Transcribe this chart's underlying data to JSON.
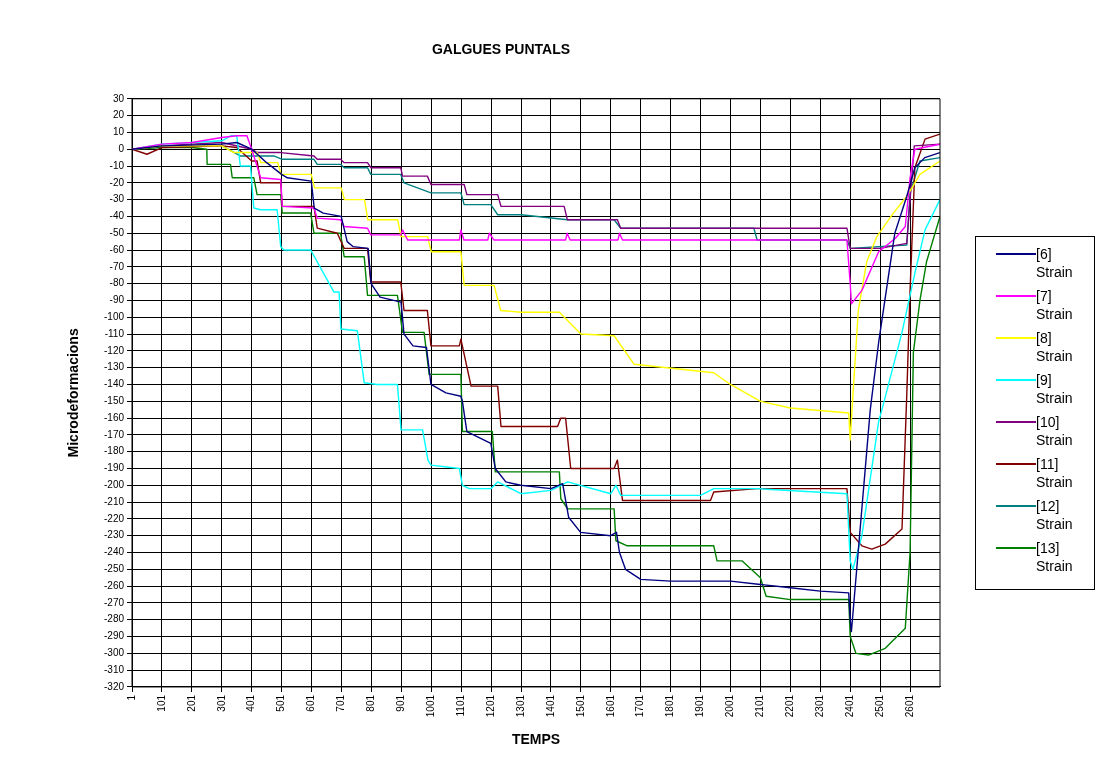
{
  "chart_data": {
    "type": "line",
    "title": "GALGUES PUNTALS",
    "xlabel": "TEMPS",
    "ylabel": "Microdeformacions",
    "xlim": [
      1,
      2701
    ],
    "xticks": [
      1,
      101,
      201,
      301,
      401,
      501,
      601,
      701,
      801,
      901,
      1001,
      1101,
      1201,
      1301,
      1401,
      1501,
      1601,
      1701,
      1801,
      1901,
      2001,
      2101,
      2201,
      2301,
      2401,
      2501,
      2601
    ],
    "ylim": [
      -320,
      30
    ],
    "yticks": [
      -320,
      -310,
      -300,
      -290,
      -280,
      -270,
      -260,
      -250,
      -240,
      -230,
      -220,
      -210,
      -200,
      -190,
      -180,
      -170,
      -160,
      -150,
      -140,
      -130,
      -120,
      -110,
      -100,
      -90,
      -80,
      -70,
      -60,
      -50,
      -40,
      -30,
      -20,
      -10,
      0,
      10,
      20,
      30
    ],
    "grid": true,
    "legend": "right",
    "marker": "none",
    "line_style": "solid",
    "series": [
      {
        "name": "[6] Strain",
        "color": "#000080",
        "x": [
          1,
          101,
          301,
          351,
          401,
          451,
          501,
          520,
          600,
          610,
          640,
          700,
          720,
          740,
          790,
          800,
          830,
          900,
          910,
          940,
          985,
          1000,
          1050,
          1100,
          1105,
          1120,
          1200,
          1215,
          1250,
          1300,
          1401,
          1440,
          1460,
          1500,
          1600,
          1620,
          1630,
          1650,
          1701,
          1801,
          1901,
          2001,
          2101,
          2201,
          2301,
          2396,
          2401,
          2405,
          2468,
          2496,
          2525,
          2550,
          2590,
          2617,
          2650,
          2701
        ],
        "values": [
          0,
          2,
          3,
          4,
          0,
          -8,
          -15,
          -17,
          -19,
          -35,
          -38,
          -40,
          -55,
          -58,
          -59,
          -80,
          -88,
          -91,
          -110,
          -117,
          -118,
          -140,
          -145,
          -147,
          -150,
          -168,
          -175,
          -190,
          -198,
          -200,
          -202,
          -199,
          -219,
          -228,
          -230,
          -228,
          -240,
          -250,
          -256,
          -257,
          -257,
          -257,
          -259,
          -261,
          -263,
          -264,
          -280,
          -287,
          -155,
          -115,
          -80,
          -50,
          -28,
          -11,
          -5,
          -2
        ]
      },
      {
        "name": "[7] Strain",
        "color": "#ff00ff",
        "x": [
          1,
          101,
          201,
          301,
          351,
          385,
          401,
          431,
          498,
          503,
          609,
          620,
          698,
          710,
          788,
          799,
          899,
          905,
          922,
          1000,
          1095,
          1100,
          1110,
          1190,
          1195,
          1210,
          1301,
          1450,
          1455,
          1465,
          1625,
          1630,
          1640,
          2390,
          2401,
          2405,
          2440,
          2496,
          2552,
          2585,
          2601,
          2617,
          2701
        ],
        "values": [
          0,
          3,
          4,
          7,
          8,
          8,
          0,
          -17,
          -18,
          -34,
          -35,
          -41,
          -42,
          -46,
          -47,
          -51,
          -51,
          -48,
          -54,
          -54,
          -54,
          -48,
          -54,
          -54,
          -50,
          -54,
          -54,
          -54,
          -50,
          -54,
          -54,
          -50,
          -54,
          -54,
          -80,
          -92,
          -84,
          -61,
          -53,
          -46,
          -17,
          0,
          3
        ]
      },
      {
        "name": "[8] Strain",
        "color": "#ffff00",
        "x": [
          1,
          101,
          301,
          341,
          419,
          432,
          488,
          499,
          600,
          611,
          700,
          711,
          778,
          789,
          889,
          900,
          989,
          1001,
          1100,
          1111,
          1211,
          1233,
          1301,
          1429,
          1501,
          1612,
          1679,
          1945,
          2001,
          2101,
          2201,
          2396,
          2401,
          2407,
          2428,
          2456,
          2490,
          2545,
          2590,
          2634,
          2701
        ],
        "values": [
          0,
          2,
          2,
          -2,
          -2,
          -8,
          -8,
          -15,
          -15,
          -23,
          -23,
          -30,
          -30,
          -42,
          -42,
          -52,
          -52,
          -61,
          -61,
          -81,
          -81,
          -96,
          -97,
          -97,
          -110,
          -111,
          -128,
          -133,
          -140,
          -150,
          -154,
          -157,
          -173,
          -155,
          -96,
          -67,
          -52,
          -38,
          -28,
          -15,
          -7
        ]
      },
      {
        "name": "[9] Strain",
        "color": "#00ffff",
        "x": [
          1,
          101,
          201,
          301,
          331,
          351,
          363,
          397,
          408,
          431,
          486,
          498,
          509,
          598,
          676,
          693,
          699,
          754,
          777,
          821,
          888,
          900,
          972,
          990,
          1000,
          1095,
          1105,
          1128,
          1200,
          1223,
          1301,
          1401,
          1457,
          1601,
          1618,
          1634,
          1901,
          1945,
          2090,
          2390,
          2401,
          2410,
          2440,
          2496,
          2507,
          2574,
          2618,
          2651,
          2701
        ],
        "values": [
          0,
          3,
          4,
          5,
          8,
          8,
          -10,
          -10,
          -35,
          -36,
          -36,
          -58,
          -60,
          -60,
          -85,
          -85,
          -107,
          -108,
          -139,
          -140,
          -140,
          -167,
          -167,
          -185,
          -188,
          -190,
          -200,
          -202,
          -202,
          -198,
          -205,
          -203,
          -198,
          -205,
          -200,
          -206,
          -206,
          -202,
          -202,
          -205,
          -245,
          -250,
          -230,
          -162,
          -155,
          -109,
          -73,
          -48,
          -30
        ]
      },
      {
        "name": "[10] Strain",
        "color": "#800080",
        "x": [
          1,
          101,
          201,
          301,
          401,
          419,
          498,
          609,
          620,
          698,
          710,
          788,
          799,
          899,
          905,
          988,
          1000,
          1111,
          1120,
          1223,
          1234,
          1445,
          1456,
          1623,
          1634,
          2390,
          2401,
          2500,
          2590,
          2601,
          2615,
          2701
        ],
        "values": [
          0,
          2,
          3,
          4,
          0,
          -2,
          -2,
          -4,
          -6,
          -6,
          -8,
          -8,
          -11,
          -11,
          -16,
          -16,
          -21,
          -21,
          -27,
          -27,
          -34,
          -34,
          -42,
          -42,
          -47,
          -47,
          -59,
          -59,
          -56,
          -30,
          2,
          3
        ]
      },
      {
        "name": "[11] Strain",
        "color": "#800000",
        "x": [
          1,
          51,
          101,
          301,
          351,
          401,
          419,
          431,
          498,
          503,
          609,
          620,
          687,
          710,
          788,
          799,
          899,
          910,
          988,
          1000,
          1095,
          1100,
          1134,
          1223,
          1234,
          1423,
          1434,
          1450,
          1467,
          1612,
          1623,
          1640,
          1934,
          1945,
          2090,
          2390,
          2401,
          2440,
          2473,
          2518,
          2574,
          2590,
          2601,
          2617,
          2651,
          2701
        ],
        "values": [
          0,
          -3,
          1,
          2,
          1,
          -7,
          -7,
          -20,
          -20,
          -34,
          -34,
          -47,
          -50,
          -59,
          -59,
          -79,
          -79,
          -96,
          -96,
          -117,
          -117,
          -113,
          -141,
          -141,
          -165,
          -165,
          -160,
          -160,
          -190,
          -190,
          -185,
          -209,
          -209,
          -204,
          -202,
          -202,
          -228,
          -236,
          -238,
          -235,
          -226,
          -146,
          -84,
          -11,
          6,
          9
        ]
      },
      {
        "name": "[12] Strain",
        "color": "#008080",
        "x": [
          301,
          363,
          475,
          503,
          609,
          620,
          698,
          710,
          788,
          799,
          899,
          910,
          1000,
          1100,
          1111,
          1200,
          1223,
          1301,
          1456,
          1612,
          1634,
          2079,
          2090,
          2390,
          2401,
          2590,
          2601,
          2634,
          2701
        ],
        "values": [
          2,
          -4,
          -4,
          -6,
          -6,
          -9,
          -9,
          -11,
          -11,
          -15,
          -15,
          -20,
          -26,
          -26,
          -33,
          -33,
          -39,
          -39,
          -42,
          -42,
          -47,
          -47,
          -54,
          -54,
          -59,
          -57,
          -26,
          -7,
          -5
        ]
      },
      {
        "name": "[13] Strain",
        "color": "#008000",
        "x": [
          1,
          101,
          201,
          251,
          252,
          330,
          336,
          408,
          419,
          498,
          503,
          598,
          609,
          698,
          710,
          777,
          788,
          888,
          905,
          977,
          994,
          1100,
          1105,
          1205,
          1215,
          1301,
          1429,
          1434,
          1457,
          1612,
          1618,
          1656,
          1945,
          1956,
          2040,
          2101,
          2120,
          2201,
          2396,
          2401,
          2420,
          2462,
          2518,
          2585,
          2601,
          2612,
          2634,
          2656,
          2701
        ],
        "values": [
          0,
          1,
          1,
          0,
          -9,
          -9,
          -17,
          -17,
          -27,
          -27,
          -38,
          -38,
          -50,
          -50,
          -64,
          -64,
          -87,
          -87,
          -109,
          -109,
          -134,
          -134,
          -168,
          -168,
          -192,
          -192,
          -192,
          -208,
          -214,
          -214,
          -233,
          -236,
          -236,
          -245,
          -245,
          -255,
          -266,
          -268,
          -268,
          -290,
          -300,
          -301,
          -297,
          -285,
          -240,
          -121,
          -90,
          -67,
          -40
        ]
      }
    ]
  }
}
